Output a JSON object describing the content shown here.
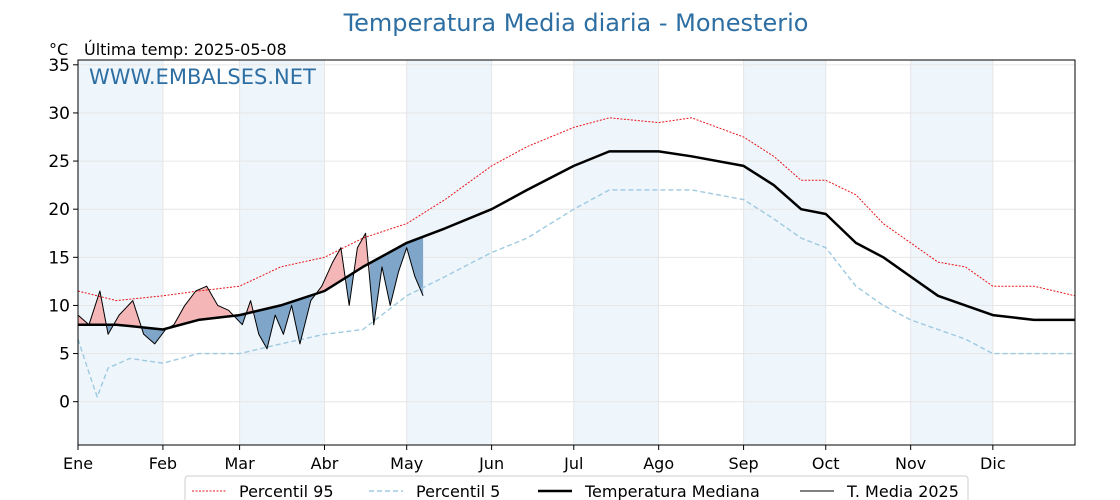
{
  "chart_data": {
    "type": "line",
    "title": "Temperatura Media diaria - Monesterio",
    "unit_label": "°C",
    "last_temp_label": "Última temp: 2025-05-08",
    "watermark": "WWW.EMBALSES.NET",
    "xlim": [
      1,
      365
    ],
    "ylim": [
      -4.5,
      35.5
    ],
    "y_ticks": [
      0,
      5,
      10,
      15,
      20,
      25,
      30,
      35
    ],
    "month_ticks": [
      {
        "label": "Ene",
        "day": 1
      },
      {
        "label": "Feb",
        "day": 32
      },
      {
        "label": "Mar",
        "day": 60
      },
      {
        "label": "Abr",
        "day": 91
      },
      {
        "label": "May",
        "day": 121
      },
      {
        "label": "Jun",
        "day": 152
      },
      {
        "label": "Jul",
        "day": 182
      },
      {
        "label": "Ago",
        "day": 213
      },
      {
        "label": "Sep",
        "day": 244
      },
      {
        "label": "Oct",
        "day": 274
      },
      {
        "label": "Nov",
        "day": 305
      },
      {
        "label": "Dic",
        "day": 335
      }
    ],
    "shaded_month_bands": [
      [
        1,
        32
      ],
      [
        60,
        91
      ],
      [
        121,
        152
      ],
      [
        182,
        213
      ],
      [
        244,
        274
      ],
      [
        305,
        335
      ]
    ],
    "grid": true,
    "legend_position": "bottom",
    "colors": {
      "p95": "#e8161b",
      "p5": "#9ecae1",
      "median": "#000000",
      "current": "#000000",
      "above": "#f4b6b6",
      "below": "#7fa6c9",
      "band": "#eef5fb",
      "title": "#2e6fa3"
    },
    "series": [
      {
        "name": "Percentil 95",
        "key": "p95",
        "points": [
          [
            1,
            11.5
          ],
          [
            15,
            10.5
          ],
          [
            32,
            11
          ],
          [
            45,
            11.5
          ],
          [
            60,
            12
          ],
          [
            75,
            14
          ],
          [
            91,
            15
          ],
          [
            105,
            17
          ],
          [
            121,
            18.5
          ],
          [
            135,
            21
          ],
          [
            152,
            24.5
          ],
          [
            165,
            26.5
          ],
          [
            182,
            28.5
          ],
          [
            195,
            29.5
          ],
          [
            213,
            29
          ],
          [
            225,
            29.5
          ],
          [
            244,
            27.5
          ],
          [
            255,
            25.5
          ],
          [
            265,
            23
          ],
          [
            274,
            23
          ],
          [
            285,
            21.5
          ],
          [
            295,
            18.5
          ],
          [
            305,
            16.5
          ],
          [
            315,
            14.5
          ],
          [
            325,
            14
          ],
          [
            335,
            12
          ],
          [
            350,
            12
          ],
          [
            365,
            11
          ]
        ]
      },
      {
        "name": "Percentil 5",
        "key": "p5",
        "points": [
          [
            1,
            6.5
          ],
          [
            5,
            3
          ],
          [
            8,
            0.5
          ],
          [
            12,
            3.5
          ],
          [
            20,
            4.5
          ],
          [
            32,
            4
          ],
          [
            45,
            5
          ],
          [
            60,
            5
          ],
          [
            75,
            6
          ],
          [
            91,
            7
          ],
          [
            105,
            7.5
          ],
          [
            121,
            11
          ],
          [
            135,
            13
          ],
          [
            152,
            15.5
          ],
          [
            165,
            17
          ],
          [
            182,
            20
          ],
          [
            195,
            22
          ],
          [
            213,
            22
          ],
          [
            225,
            22
          ],
          [
            244,
            21
          ],
          [
            255,
            19
          ],
          [
            265,
            17
          ],
          [
            274,
            16
          ],
          [
            285,
            12
          ],
          [
            295,
            10
          ],
          [
            305,
            8.5
          ],
          [
            315,
            7.5
          ],
          [
            325,
            6.5
          ],
          [
            335,
            5
          ],
          [
            350,
            5
          ],
          [
            365,
            5
          ]
        ]
      },
      {
        "name": "Temperatura Mediana",
        "key": "median",
        "points": [
          [
            1,
            8
          ],
          [
            15,
            8
          ],
          [
            32,
            7.5
          ],
          [
            45,
            8.5
          ],
          [
            60,
            9
          ],
          [
            75,
            10
          ],
          [
            91,
            11.5
          ],
          [
            105,
            14
          ],
          [
            121,
            16.5
          ],
          [
            135,
            18
          ],
          [
            152,
            20
          ],
          [
            165,
            22
          ],
          [
            182,
            24.5
          ],
          [
            195,
            26
          ],
          [
            213,
            26
          ],
          [
            225,
            25.5
          ],
          [
            244,
            24.5
          ],
          [
            255,
            22.5
          ],
          [
            265,
            20
          ],
          [
            274,
            19.5
          ],
          [
            285,
            16.5
          ],
          [
            295,
            15
          ],
          [
            305,
            13
          ],
          [
            315,
            11
          ],
          [
            325,
            10
          ],
          [
            335,
            9
          ],
          [
            350,
            8.5
          ],
          [
            365,
            8.5
          ]
        ]
      },
      {
        "name": "T. Media 2025",
        "key": "current",
        "points": [
          [
            1,
            9
          ],
          [
            5,
            8
          ],
          [
            9,
            11.5
          ],
          [
            12,
            7
          ],
          [
            16,
            9
          ],
          [
            21,
            10.5
          ],
          [
            25,
            7
          ],
          [
            29,
            6
          ],
          [
            33,
            7.5
          ],
          [
            36,
            8
          ],
          [
            40,
            10
          ],
          [
            44,
            11.5
          ],
          [
            48,
            12
          ],
          [
            52,
            10
          ],
          [
            56,
            9.5
          ],
          [
            61,
            8
          ],
          [
            64,
            10.5
          ],
          [
            67,
            7
          ],
          [
            70,
            5.5
          ],
          [
            73,
            9
          ],
          [
            76,
            7
          ],
          [
            79,
            10
          ],
          [
            82,
            6
          ],
          [
            86,
            10.5
          ],
          [
            90,
            12
          ],
          [
            94,
            14.5
          ],
          [
            97,
            16
          ],
          [
            100,
            10
          ],
          [
            103,
            16
          ],
          [
            106,
            17.5
          ],
          [
            109,
            8
          ],
          [
            112,
            14
          ],
          [
            115,
            10
          ],
          [
            118,
            13.5
          ],
          [
            121,
            16
          ],
          [
            124,
            13
          ],
          [
            127,
            11
          ]
        ]
      }
    ]
  },
  "legend": [
    {
      "label": "Percentil 95",
      "key": "p95"
    },
    {
      "label": "Percentil 5",
      "key": "p5"
    },
    {
      "label": "Temperatura Mediana",
      "key": "median"
    },
    {
      "label": "T. Media 2025",
      "key": "current"
    }
  ]
}
